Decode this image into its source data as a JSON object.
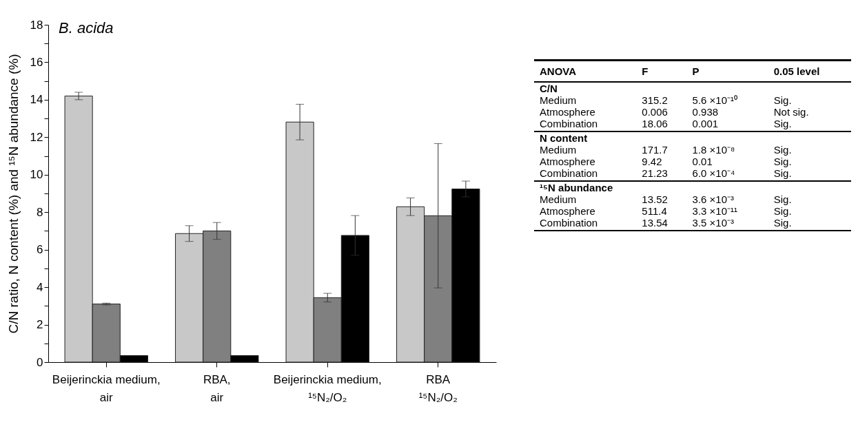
{
  "chart_data": [
    {
      "type": "bar",
      "title": "B. acida",
      "ylabel": "C/N ratio, N content (%) and ¹⁵N abundance (%)",
      "categories": [
        "Beijerinckia medium, air",
        "RBA, air",
        "Beijerinckia medium, ¹⁵N₂/O₂",
        "RBA ¹⁵N₂/O₂"
      ],
      "series": [
        {
          "color": "#c8c8c8",
          "values": [
            14.2,
            6.86,
            12.81,
            8.29
          ],
          "errors": [
            0.2,
            0.42,
            0.95,
            0.47
          ]
        },
        {
          "color": "#808080",
          "values": [
            3.1,
            7.0,
            3.44,
            7.81
          ],
          "errors": [
            0.05,
            0.45,
            0.23,
            3.85
          ]
        },
        {
          "color": "#000000",
          "values": [
            0.35,
            0.35,
            6.76,
            9.24
          ],
          "errors": [
            null,
            null,
            1.06,
            0.42
          ]
        }
      ],
      "ylim": [
        0,
        18
      ],
      "yticks": [
        0,
        {
          "value": 1,
          "label": null
        },
        2,
        {
          "value": 3,
          "label": null
        },
        4,
        {
          "value": 5,
          "label": null
        },
        6,
        {
          "value": 7,
          "label": null
        },
        8,
        {
          "value": 9,
          "label": null
        },
        10,
        {
          "value": 11,
          "label": null
        },
        12,
        {
          "value": 13,
          "label": null
        },
        14,
        {
          "value": 15,
          "label": null
        },
        16,
        {
          "value": 17,
          "label": null
        },
        18
      ],
      "grid": false,
      "legend": false
    },
    {
      "type": "other",
      "annotations": [
        "ANOVA",
        "F",
        "P",
        "0.05 level",
        "C/N",
        "Medium",
        "315.2",
        "5.6 ×10⁻¹⁰",
        "Sig.",
        "Atmosphere",
        "0.006",
        "0.938",
        "Not sig.",
        "Combination",
        "18.06",
        "0.001",
        "Sig.",
        "N content",
        "Medium",
        "171.7",
        "1.8 ×10⁻⁸",
        "Sig.",
        "Atmosphere",
        "9.42",
        "0.01",
        "Sig.",
        "Combination",
        "21.23",
        "6.0 ×10⁻⁴",
        "Sig.",
        "¹⁵N abundance",
        "Medium",
        "13.52",
        "3.6 ×10⁻³",
        "Sig.",
        "Atmosphere",
        "511.4",
        "3.3 ×10⁻¹¹",
        "Sig.",
        "Combination",
        "13.54",
        "3.5 ×10⁻³",
        "Sig."
      ]
    }
  ]
}
